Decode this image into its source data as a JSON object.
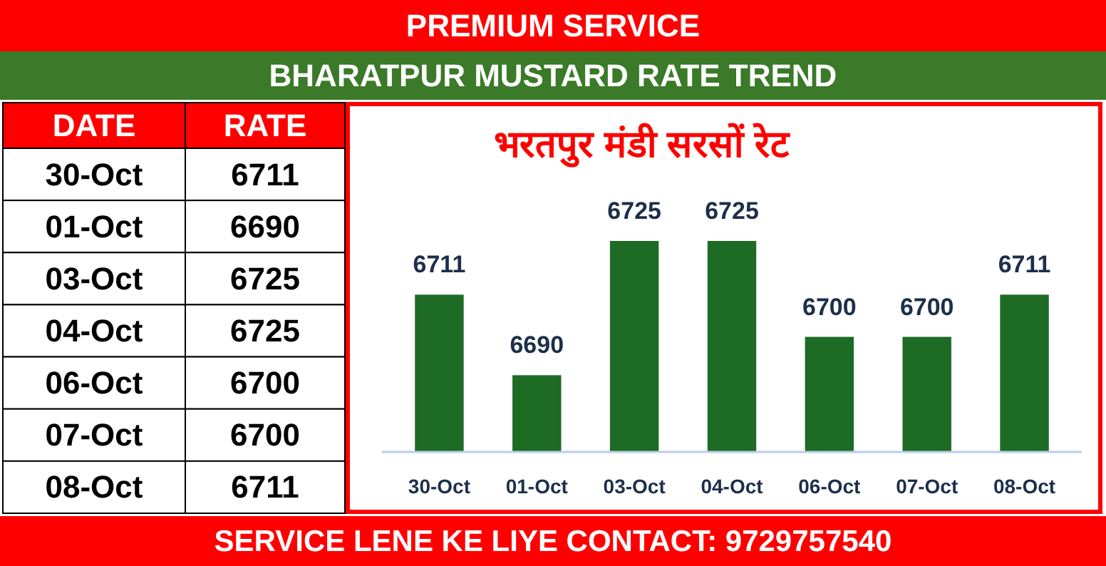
{
  "chart_data": [
    {
      "type": "other",
      "annotations": [
        "DATE",
        "RATE",
        "30-Oct",
        "6711",
        "01-Oct",
        "6690",
        "03-Oct",
        "6725",
        "04-Oct",
        "6725",
        "06-Oct",
        "6700",
        "07-Oct",
        "6700",
        "08-Oct",
        "6711"
      ]
    },
    {
      "type": "bar",
      "title": "भरतपुर मंडी सरसों रेट",
      "annotations": [
        "PREMIUM SERVICE",
        "BHARATPUR MUSTARD RATE TREND",
        "SERVICE LENE KE LIYE CONTACT: 9729757540"
      ],
      "categories": [
        "30-Oct",
        "01-Oct",
        "03-Oct",
        "04-Oct",
        "06-Oct",
        "07-Oct",
        "08-Oct"
      ],
      "values": [
        6711,
        6690,
        6725,
        6725,
        6700,
        6700,
        6711
      ],
      "color": "#1e6b25",
      "ylim": [
        6670,
        6725
      ],
      "data_labels": true
    }
  ]
}
